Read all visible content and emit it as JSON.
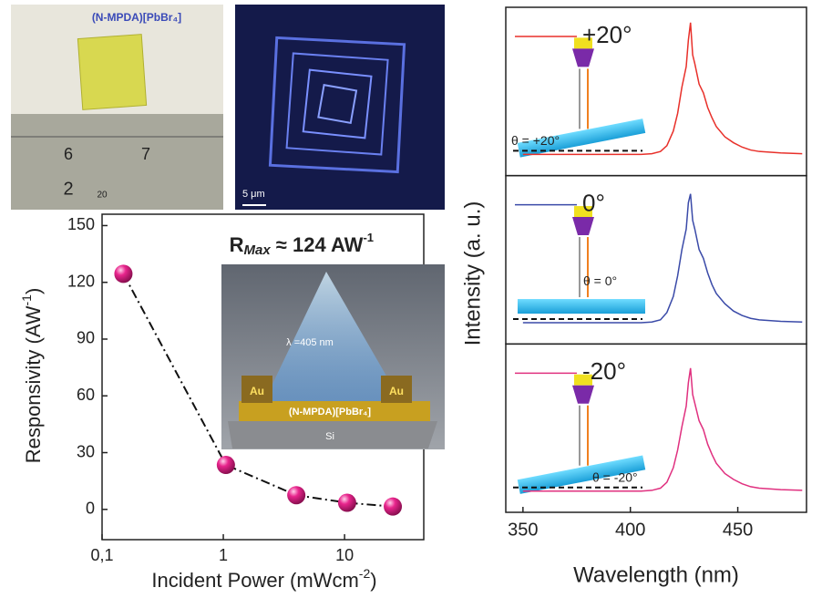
{
  "photo": {
    "compound": "(N-MPDA)[PbBr₄]",
    "ruler": [
      "6",
      "7",
      "2",
      "20"
    ]
  },
  "micrograph": {
    "scale_bar": "5 μm"
  },
  "inset": {
    "wavelength": "λ =405 nm",
    "left_contact": "Au",
    "right_contact": "Au",
    "film": "(N-MPDA)[PbBr₄]",
    "substrate": "Si"
  },
  "chart_data": [
    {
      "type": "line",
      "annotation": {
        "symbol": "R",
        "sub": "Max",
        "text": " ≈ 124 AW",
        "sup": "-1"
      },
      "x_label": {
        "text": "Incident Power (mWcm",
        "sup": "-2",
        "end": ")"
      },
      "y_label": {
        "text": "Responsivity (AW",
        "sup": "-1",
        "end": ")"
      },
      "x": [
        0.15,
        1.05,
        4,
        10.5,
        25
      ],
      "values": [
        124.5,
        23.5,
        7.5,
        3.5,
        1.5
      ],
      "color": "#e8248c",
      "line_color": "#111111",
      "xlog": true,
      "xlim": [
        0.1,
        45
      ],
      "xticks": [
        {
          "value": 0.1,
          "label": "0,1"
        },
        1,
        10
      ],
      "ylim": [
        -16,
        156
      ],
      "yticks": [
        0,
        30,
        60,
        90,
        120,
        150
      ]
    },
    {
      "type": "line",
      "stacked_panels": true,
      "x_label": "Wavelength (nm)",
      "y_label": "Intensity (a. u.)",
      "x": [
        350,
        360,
        370,
        380,
        390,
        400,
        405,
        410,
        414,
        417,
        420,
        422,
        424,
        426,
        427,
        428,
        429,
        430,
        432,
        434,
        436,
        438,
        440,
        444,
        448,
        452,
        456,
        460,
        470,
        480
      ],
      "xlim": [
        342,
        482
      ],
      "xticks": [
        350,
        400,
        450
      ],
      "ylim": [
        -10,
        100
      ],
      "series": [
        {
          "name": "+20°",
          "annotation": "θ = +20°",
          "color": "#e8302a",
          "values": [
            2,
            2,
            2,
            2,
            2,
            2,
            2,
            2.5,
            4,
            8,
            18,
            30,
            48,
            62,
            80,
            92,
            70,
            64,
            50,
            44,
            34,
            27,
            21,
            14,
            10,
            7,
            5,
            4,
            3,
            2.5
          ]
        },
        {
          "name": "0°",
          "annotation": "θ = 0°",
          "color": "#3a4aa8",
          "values": [
            2,
            2,
            2,
            2,
            2,
            2,
            2,
            2.5,
            4,
            9,
            20,
            34,
            52,
            66,
            84,
            90,
            72,
            66,
            52,
            46,
            36,
            28,
            22,
            15,
            10,
            7,
            5,
            4,
            3,
            2.5
          ]
        },
        {
          "name": "-20°",
          "annotation": "θ = -20°",
          "color": "#e0307f",
          "values": [
            2,
            2,
            2,
            2,
            2,
            2,
            2,
            2.5,
            4,
            8,
            18,
            30,
            46,
            60,
            76,
            86,
            68,
            62,
            50,
            44,
            34,
            27,
            21,
            14,
            10,
            7,
            5,
            4,
            3,
            2.5
          ]
        }
      ]
    }
  ]
}
